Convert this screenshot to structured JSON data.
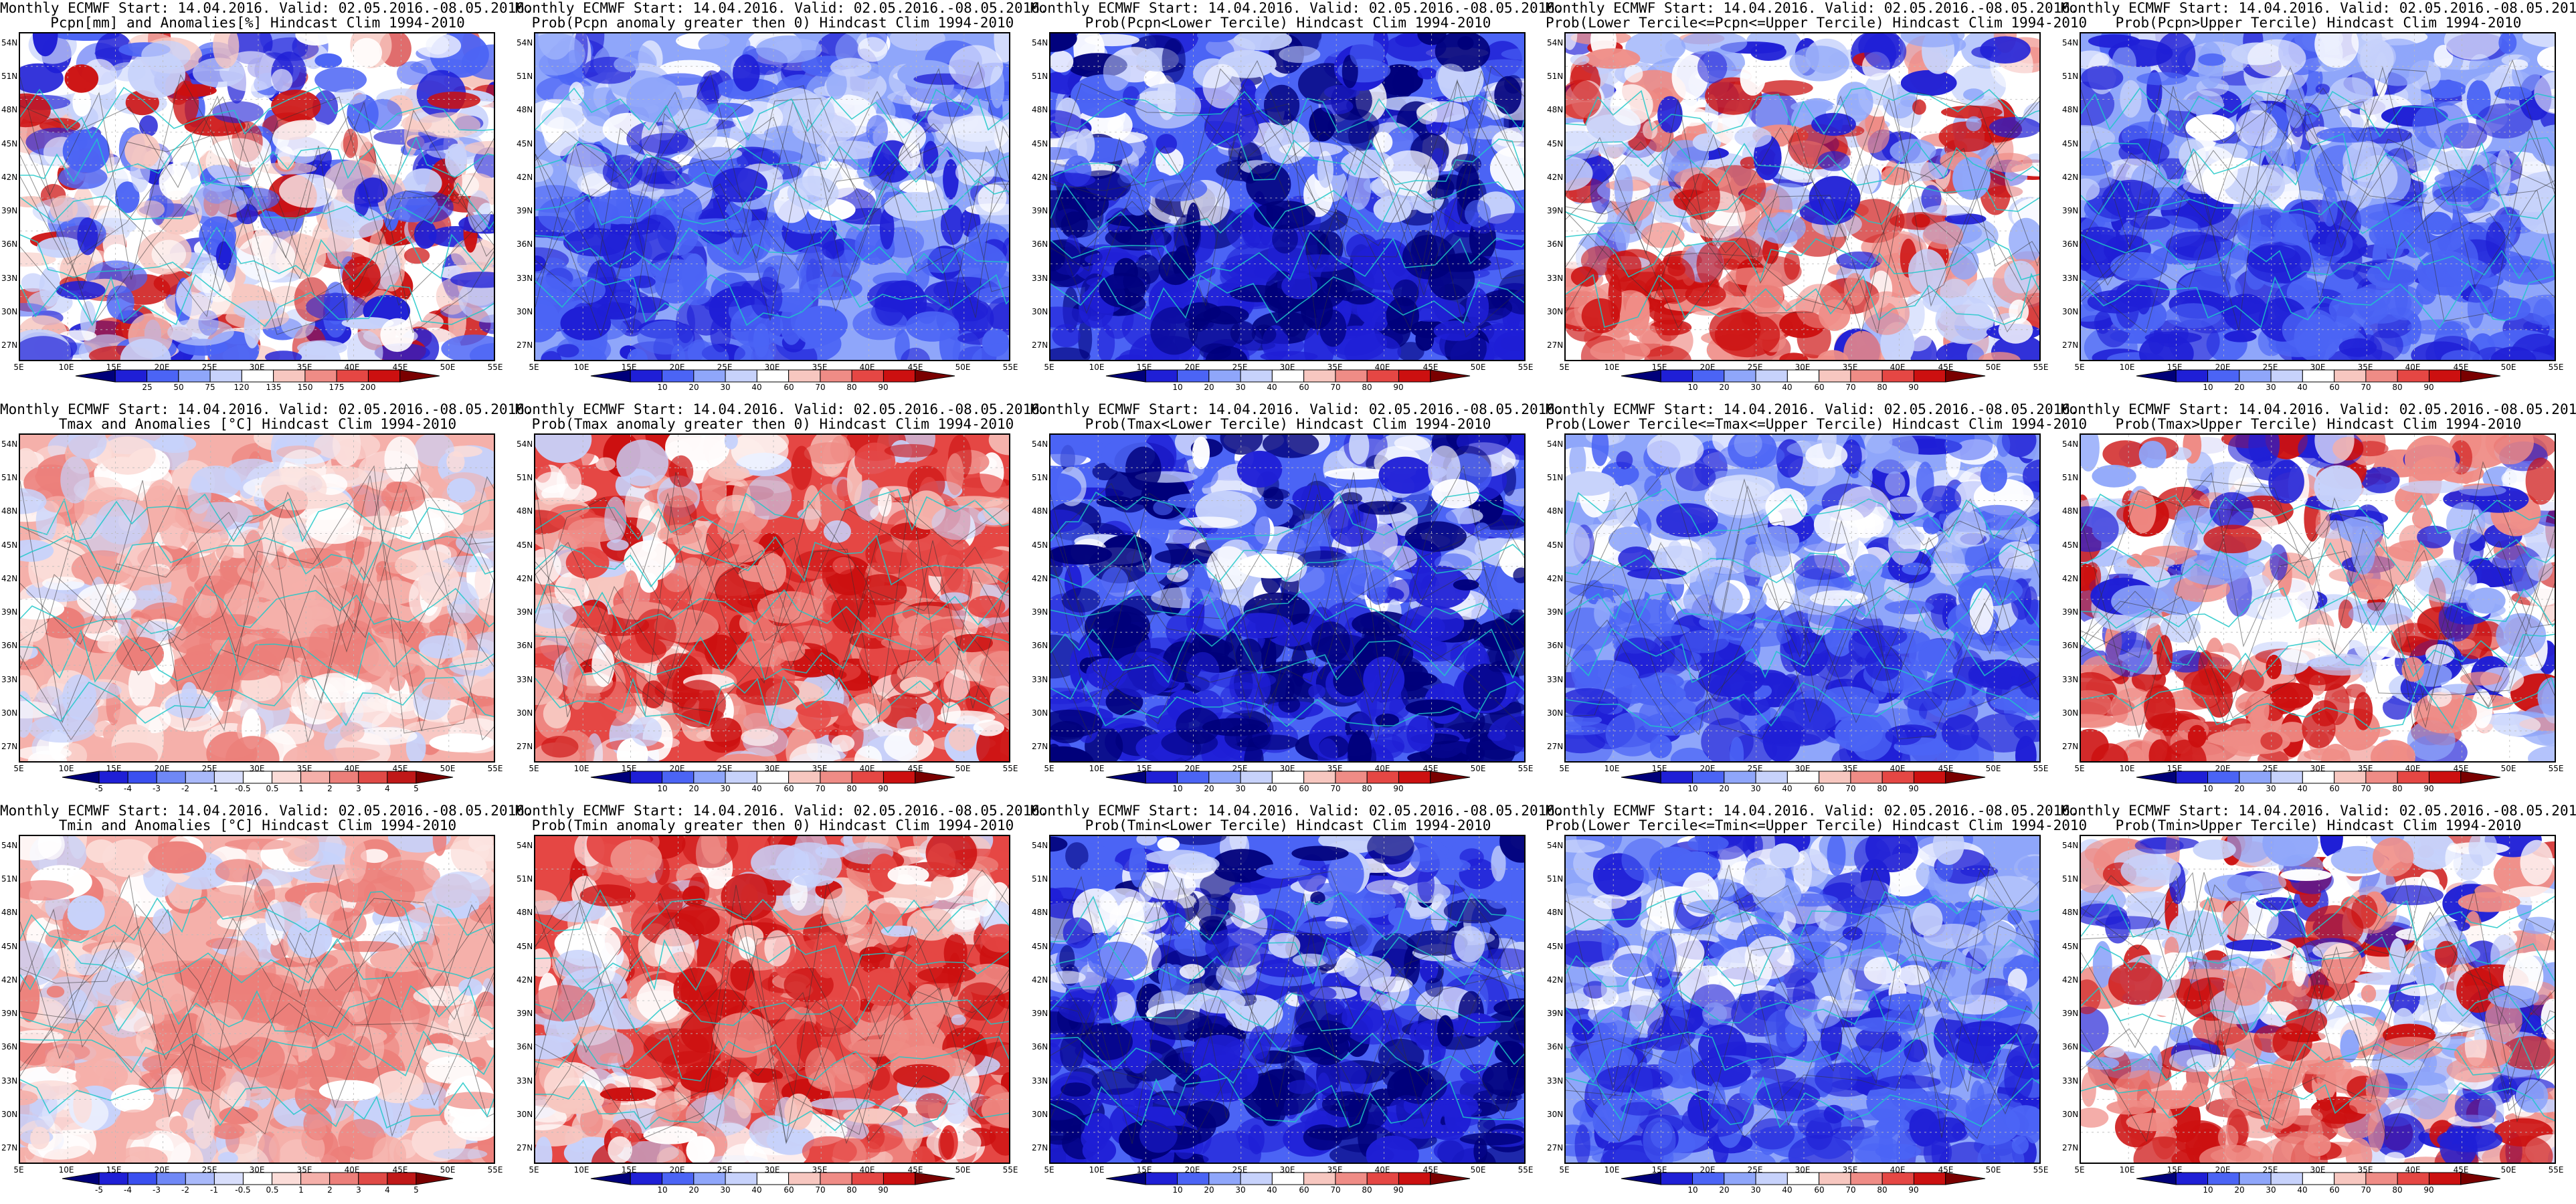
{
  "figure": {
    "common_title": "Monthly ECMWF Start: 14.04.2016. Valid: 02.05.2016.-08.05.2016.",
    "lat_ticks": [
      "54N",
      "51N",
      "48N",
      "45N",
      "42N",
      "39N",
      "36N",
      "33N",
      "30N",
      "27N"
    ],
    "lon_ticks": [
      "5E",
      "10E",
      "15E",
      "20E",
      "25E",
      "30E",
      "35E",
      "40E",
      "45E",
      "50E",
      "55E"
    ]
  },
  "colorbars": {
    "precip_anomaly": {
      "labels": [
        "25",
        "50",
        "75",
        "120",
        "135",
        "150",
        "175",
        "200"
      ],
      "colors": [
        "#00007a",
        "#1f1fd6",
        "#4b64f5",
        "#8fa6fa",
        "#c7d2fb",
        "#ffffff",
        "#f7c7c0",
        "#ef8c86",
        "#e54744",
        "#cc1010",
        "#7a0000"
      ]
    },
    "probability": {
      "labels": [
        "10",
        "20",
        "30",
        "40",
        "60",
        "70",
        "80",
        "90"
      ],
      "colors": [
        "#00007a",
        "#1f1fd6",
        "#4b64f5",
        "#8fa6fa",
        "#c7d2fb",
        "#ffffff",
        "#f7c7c0",
        "#ef8c86",
        "#e54744",
        "#cc1010",
        "#7a0000"
      ]
    },
    "temp_anomaly": {
      "labels": [
        "-5",
        "-4",
        "-3",
        "-2",
        "-1",
        "-0.5",
        "0.5",
        "1",
        "2",
        "3",
        "4",
        "5"
      ],
      "colors": [
        "#00007a",
        "#1f1fd6",
        "#3a4fef",
        "#6f88f6",
        "#a9b9fa",
        "#d8defb",
        "#ffffff",
        "#fbdcd8",
        "#f5b0aa",
        "#ec7f7a",
        "#e04a46",
        "#c01818",
        "#7a0000"
      ]
    }
  },
  "panels": [
    {
      "row": 0,
      "col": 0,
      "subtitle": "Pcpn[mm] and Anomalies[%] Hindcast Clim 1994-2010",
      "colorbar": "precip_anomaly",
      "map_tone": "precip"
    },
    {
      "row": 0,
      "col": 1,
      "subtitle": "Prob(Pcpn anomaly greater then 0) Hindcast Clim 1994-2010",
      "colorbar": "probability",
      "map_tone": "blue"
    },
    {
      "row": 0,
      "col": 2,
      "subtitle": "Prob(Pcpn<Lower Tercile) Hindcast Clim 1994-2010",
      "colorbar": "probability",
      "map_tone": "deepblue"
    },
    {
      "row": 0,
      "col": 3,
      "subtitle": "Prob(Lower Tercile<=Pcpn<=Upper Tercile) Hindcast Clim 1994-2010",
      "colorbar": "probability",
      "map_tone": "bluered"
    },
    {
      "row": 0,
      "col": 4,
      "subtitle": "Prob(Pcpn>Upper Tercile) Hindcast Clim 1994-2010",
      "colorbar": "probability",
      "map_tone": "blue"
    },
    {
      "row": 1,
      "col": 0,
      "subtitle": "Tmax and Anomalies [°C] Hindcast Clim 1994-2010",
      "colorbar": "temp_anomaly",
      "map_tone": "lightred"
    },
    {
      "row": 1,
      "col": 1,
      "subtitle": "Prob(Tmax anomaly greater then 0) Hindcast Clim 1994-2010",
      "colorbar": "probability",
      "map_tone": "red"
    },
    {
      "row": 1,
      "col": 2,
      "subtitle": "Prob(Tmax<Lower Tercile) Hindcast Clim 1994-2010",
      "colorbar": "probability",
      "map_tone": "deepblue"
    },
    {
      "row": 1,
      "col": 3,
      "subtitle": "Prob(Lower Tercile<=Tmax<=Upper Tercile) Hindcast Clim 1994-2010",
      "colorbar": "probability",
      "map_tone": "blue"
    },
    {
      "row": 1,
      "col": 4,
      "subtitle": "Prob(Tmax>Upper Tercile) Hindcast Clim 1994-2010",
      "colorbar": "probability",
      "map_tone": "bluered"
    },
    {
      "row": 2,
      "col": 0,
      "subtitle": "Tmin and Anomalies [°C] Hindcast Clim 1994-2010",
      "colorbar": "temp_anomaly",
      "map_tone": "lightred"
    },
    {
      "row": 2,
      "col": 1,
      "subtitle": "Prob(Tmin anomaly greater then 0) Hindcast Clim 1994-2010",
      "colorbar": "probability",
      "map_tone": "red"
    },
    {
      "row": 2,
      "col": 2,
      "subtitle": "Prob(Tmin<Lower Tercile) Hindcast Clim 1994-2010",
      "colorbar": "probability",
      "map_tone": "deepblue"
    },
    {
      "row": 2,
      "col": 3,
      "subtitle": "Prob(Lower Tercile<=Tmin<=Upper Tercile) Hindcast Clim 1994-2010",
      "colorbar": "probability",
      "map_tone": "blue"
    },
    {
      "row": 2,
      "col": 4,
      "subtitle": "Prob(Tmin>Upper Tercile) Hindcast Clim 1994-2010",
      "colorbar": "probability",
      "map_tone": "bluered"
    }
  ],
  "map_palettes": {
    "precip": [
      "#1f1fd6",
      "#4b64f5",
      "#c7d2fb",
      "#ffffff",
      "#f7c7c0",
      "#cc1010"
    ],
    "blue": [
      "#1f1fd6",
      "#4b64f5",
      "#8fa6fa",
      "#c7d2fb",
      "#ffffff"
    ],
    "deepblue": [
      "#00007a",
      "#1f1fd6",
      "#4b64f5",
      "#c7d2fb",
      "#ffffff"
    ],
    "bluered": [
      "#1f1fd6",
      "#8fa6fa",
      "#c7d2fb",
      "#ffffff",
      "#ef8c86",
      "#cc1010"
    ],
    "lightred": [
      "#ffffff",
      "#fbdcd8",
      "#f5b0aa",
      "#ec7f7a",
      "#c7d2fb"
    ],
    "red": [
      "#ffffff",
      "#f7c7c0",
      "#ef8c86",
      "#e54744",
      "#cc1010",
      "#c7d2fb"
    ]
  }
}
